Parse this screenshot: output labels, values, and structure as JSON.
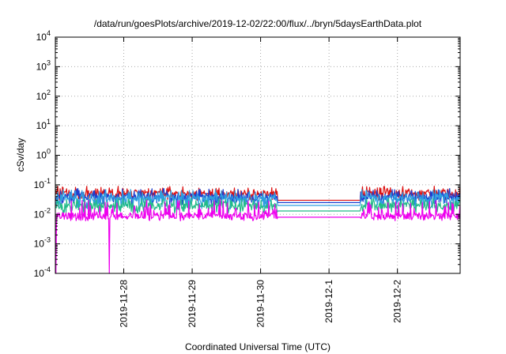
{
  "chart_data": {
    "type": "line",
    "title": "/data/run/goesPlots/archive/2019-12-02/22:00/flux/../bryn/5daysEarthData.plot",
    "xlabel": "Coordinated Universal Time (UTC)",
    "ylabel": "cSv/day",
    "yscale": "log",
    "ylim": [
      0.0001,
      10000
    ],
    "xlim": [
      "2019-11-27 00:00",
      "2019-12-02 22:00"
    ],
    "grid": true,
    "x_ticks": [
      "2019-11-28",
      "2019-11-29",
      "2019-11-30",
      "2019-12-1",
      "2019-12-2"
    ],
    "y_ticks": [
      {
        "mantissa": "10",
        "exponent": "-4"
      },
      {
        "mantissa": "10",
        "exponent": "-3"
      },
      {
        "mantissa": "10",
        "exponent": "-2"
      },
      {
        "mantissa": "10",
        "exponent": "-1"
      },
      {
        "mantissa": "10",
        "exponent": "0"
      },
      {
        "mantissa": "10",
        "exponent": "1"
      },
      {
        "mantissa": "10",
        "exponent": "2"
      },
      {
        "mantissa": "10",
        "exponent": "3"
      },
      {
        "mantissa": "10",
        "exponent": "4"
      }
    ],
    "data_gap": [
      "2019-11-30 06:00",
      "2019-12-01 11:00"
    ],
    "series": [
      {
        "color": "#dd1111",
        "base": 0.05,
        "low": 0.03,
        "high": 0.09,
        "gap_value": 0.03
      },
      {
        "color": "#1d3fd0",
        "base": 0.04,
        "low": 0.02,
        "high": 0.075,
        "gap_value": 0.025
      },
      {
        "color": "#2f9fe0",
        "base": 0.035,
        "low": 0.015,
        "high": 0.07,
        "gap_value": 0.02
      },
      {
        "color": "#22bb88",
        "base": 0.02,
        "low": 0.011,
        "high": 0.035,
        "gap_value": 0.013
      },
      {
        "color": "#ee00ee",
        "base": 0.009,
        "low": 0.006,
        "high": 0.03,
        "gap_value": 0.008
      }
    ],
    "dropouts": [
      {
        "start": "2019-11-27 00:05",
        "end": "2019-11-27 00:15",
        "value": 0.0001
      },
      {
        "start": "2019-11-27 18:50",
        "end": "2019-11-27 19:00",
        "value": 0.0001
      }
    ]
  }
}
